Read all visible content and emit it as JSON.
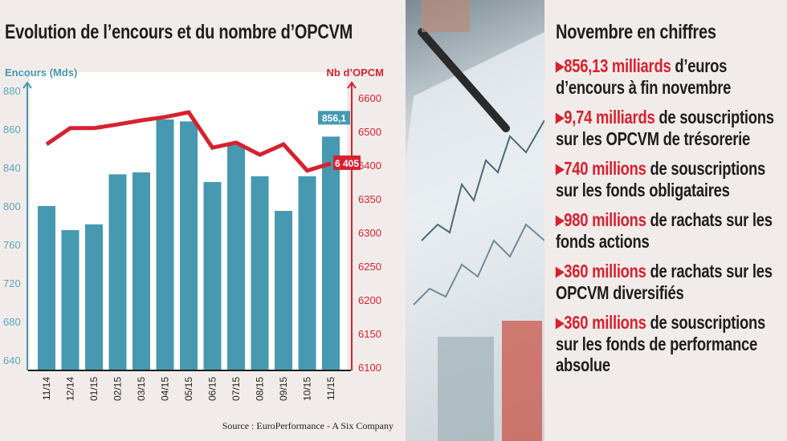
{
  "title": "Evolution de l’encours et du nombre d’OPCVM",
  "chart_data": {
    "type": "bar+line",
    "title": "Evolution de l’encours et du nombre d’OPCVM",
    "categories": [
      "11/14",
      "12/14",
      "01/15",
      "02/15",
      "03/15",
      "04/15",
      "05/15",
      "06/15",
      "07/15",
      "08/15",
      "09/15",
      "10/15",
      "11/15"
    ],
    "left_axis": {
      "label": "Encours (Mds)",
      "ticks": [
        880,
        860,
        840,
        800,
        760,
        720,
        680,
        640
      ]
    },
    "right_axis": {
      "label": "Nb d’OPCM",
      "ticks": [
        6600,
        6500,
        6400,
        6350,
        6300,
        6250,
        6200,
        6150,
        6100
      ]
    },
    "series": [
      {
        "name": "Encours (Mds)",
        "type": "bar",
        "axis": "left",
        "color": "#4699b0",
        "values": [
          800,
          775,
          781,
          833,
          835,
          865,
          864,
          825,
          852,
          831,
          795,
          831,
          856.1
        ]
      },
      {
        "name": "Nb d’OPCM",
        "type": "line",
        "axis": "right",
        "color": "#d7212f",
        "values": [
          6462,
          6510,
          6510,
          6521,
          6533,
          6543,
          6557,
          6452,
          6467,
          6431,
          6462,
          6392,
          6405
        ]
      }
    ],
    "annotations": {
      "bar_last": "856,1",
      "line_last": "6 405"
    },
    "source": "Source : EuroPerformance - A Six Company"
  },
  "panel": {
    "title": "Novembre en chiffres",
    "items": [
      {
        "highlight": "856,13 milliards",
        "text": " d’euros d’encours à fin novembre"
      },
      {
        "highlight": "9,74 milliards",
        "text": " de souscriptions sur les OPCVM de trésorerie"
      },
      {
        "highlight": "740 millions",
        "text": " de souscriptions sur les fonds obligataires"
      },
      {
        "highlight": "980 millions",
        "text": " de rachats sur les fonds actions"
      },
      {
        "highlight": "360 millions",
        "text": " de rachats sur les OPCVM diversifiés"
      },
      {
        "highlight": "360 millions",
        "text": " de souscriptions sur les fonds de performance absolue"
      }
    ]
  }
}
